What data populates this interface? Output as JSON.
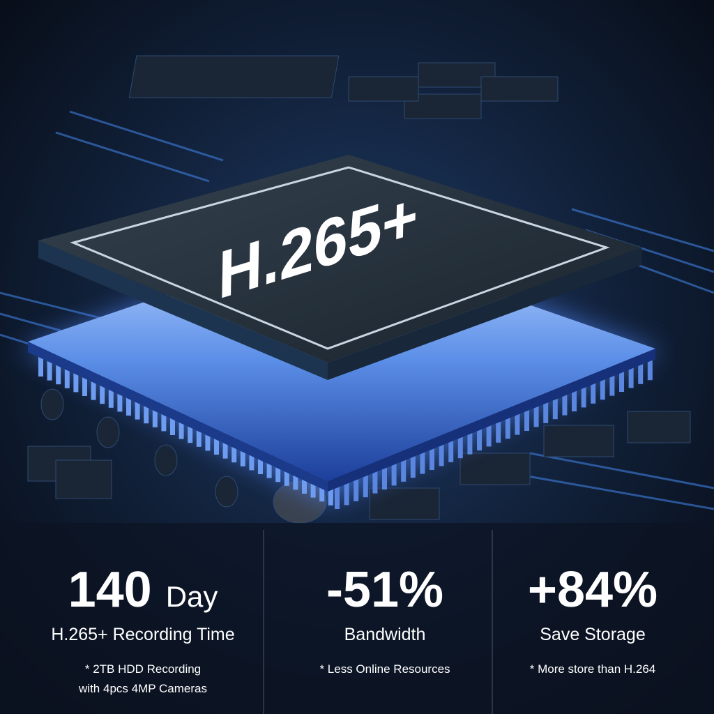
{
  "chip_label": "H.265+",
  "stats": [
    {
      "value": "140",
      "unit": "Day",
      "label": "H.265+ Recording Time",
      "note_lines": [
        "* 2TB HDD Recording",
        "with 4pcs 4MP Cameras"
      ]
    },
    {
      "value": "-51%",
      "label": "Bandwidth",
      "note_lines": [
        "* Less Online Resources"
      ]
    },
    {
      "value": "+84%",
      "label": "Save Storage",
      "note_lines": [
        "* More store than H.264"
      ]
    }
  ]
}
